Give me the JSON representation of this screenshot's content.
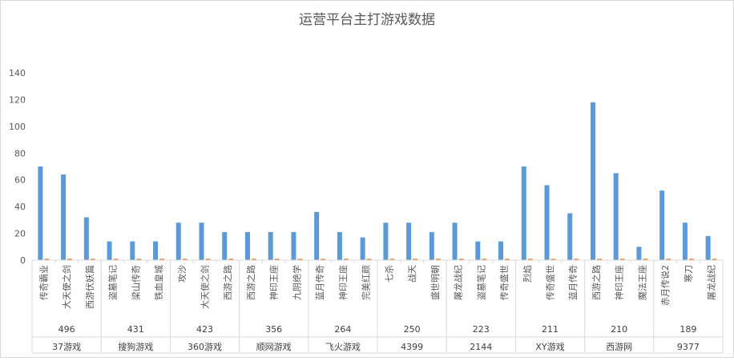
{
  "chart_data": {
    "type": "bar",
    "title": "运营平台主打游戏数据",
    "ylim": [
      0,
      140
    ],
    "yticks": [
      0,
      20,
      40,
      60,
      80,
      100,
      120,
      140
    ],
    "grid": false,
    "series_colors": [
      "#5b9bd5",
      "#ed7d31"
    ],
    "groups": [
      {
        "platform": "37游戏",
        "total": "496",
        "games": [
          "传奇霸业",
          "大天使之剑",
          "西游伏妖篇"
        ],
        "values": [
          70,
          64,
          32
        ],
        "values2": [
          1,
          1,
          1
        ]
      },
      {
        "platform": "搜狗游戏",
        "total": "431",
        "games": [
          "盗墓笔记",
          "梁山传奇",
          "铁血皇城"
        ],
        "values": [
          14,
          14,
          14
        ],
        "values2": [
          1,
          1,
          1
        ]
      },
      {
        "platform": "360游戏",
        "total": "423",
        "games": [
          "攻沙",
          "大天使之剑",
          "西游之路"
        ],
        "values": [
          28,
          28,
          21
        ],
        "values2": [
          1,
          1,
          1
        ]
      },
      {
        "platform": "顺网游戏",
        "total": "356",
        "games": [
          "西游之路",
          "神印王座",
          "九阴绝学"
        ],
        "values": [
          21,
          21,
          21
        ],
        "values2": [
          1,
          1,
          1
        ]
      },
      {
        "platform": "飞火游戏",
        "total": "264",
        "games": [
          "蓝月传奇",
          "神印王座",
          "完美红颜"
        ],
        "values": [
          36,
          21,
          17
        ],
        "values2": [
          1,
          1,
          1
        ]
      },
      {
        "platform": "4399",
        "total": "250",
        "games": [
          "七杀",
          "战天",
          "盛世明朝"
        ],
        "values": [
          28,
          28,
          21
        ],
        "values2": [
          1,
          1,
          1
        ]
      },
      {
        "platform": "2144",
        "total": "223",
        "games": [
          "屠龙战纪",
          "盗墓笔记",
          "传奇盛世"
        ],
        "values": [
          28,
          14,
          14
        ],
        "values2": [
          1,
          1,
          1
        ]
      },
      {
        "platform": "XY游戏",
        "total": "211",
        "games": [
          "烈焰",
          "传奇盛世",
          "蓝月传奇"
        ],
        "values": [
          70,
          56,
          35
        ],
        "values2": [
          1,
          1,
          1
        ]
      },
      {
        "platform": "西游网",
        "total": "210",
        "games": [
          "西游之路",
          "神印王座",
          "魔法王座"
        ],
        "values": [
          118,
          65,
          10
        ],
        "values2": [
          1,
          1,
          1
        ]
      },
      {
        "platform": "9377",
        "total": "189",
        "games": [
          "赤月传说2",
          "寒刀",
          "屠龙战纪"
        ],
        "values": [
          52,
          28,
          18
        ],
        "values2": [
          1,
          1,
          1
        ]
      }
    ]
  }
}
